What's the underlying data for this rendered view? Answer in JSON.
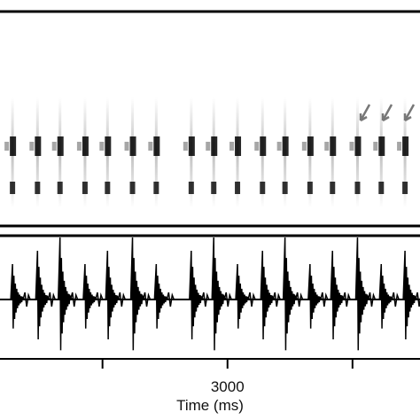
{
  "chart_data": {
    "type": "spectrogram",
    "xlabel": "Time (ms)",
    "xlim": [
      1180,
      4540
    ],
    "xticks": [
      {
        "value": 2000,
        "label": null
      },
      {
        "value": 3000,
        "label": "3000"
      },
      {
        "value": 4000,
        "label": null
      }
    ],
    "pulse_times": [
      1280,
      1480,
      1660,
      1860,
      2040,
      2240,
      2430,
      2710,
      2890,
      3080,
      3280,
      3460,
      3660,
      3840,
      4040,
      4230,
      4420
    ],
    "color": "#000000"
  }
}
